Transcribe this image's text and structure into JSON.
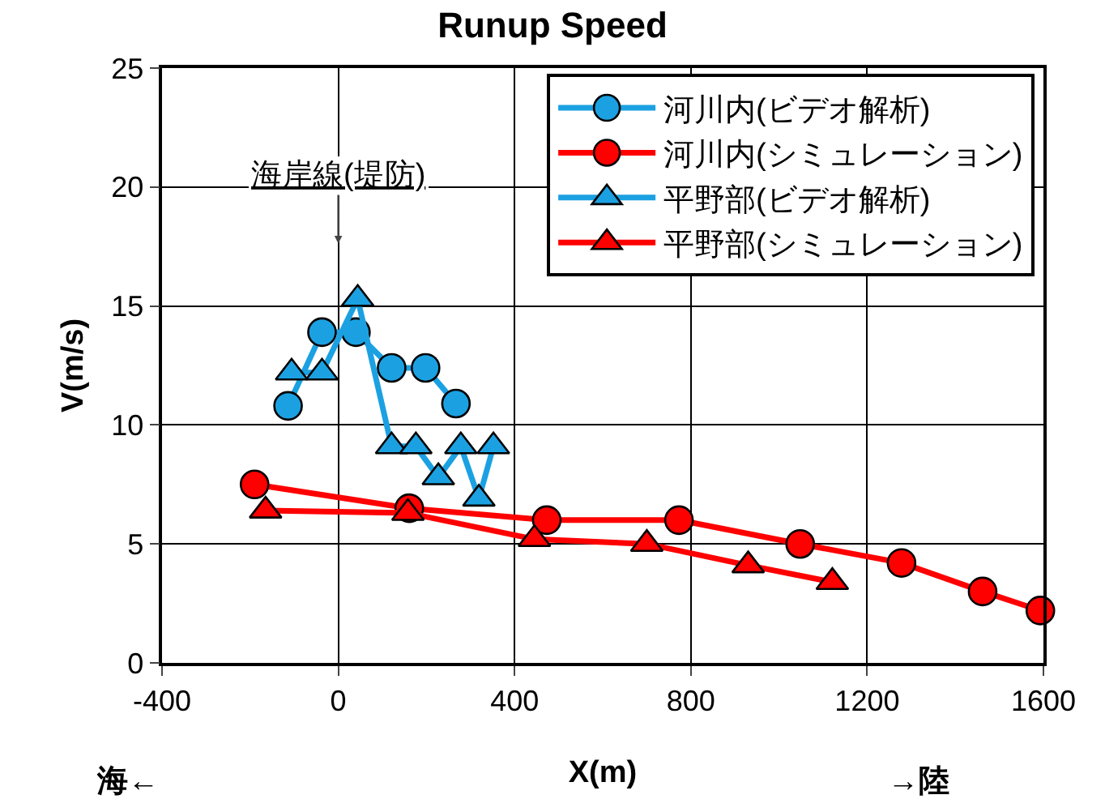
{
  "chart_data": {
    "type": "line",
    "title": "Runup Speed",
    "xlabel": "X(m)",
    "ylabel": "V(m/s)",
    "xlim": [
      -400,
      1600
    ],
    "xticks": [
      -400,
      0,
      400,
      800,
      1200,
      1600
    ],
    "ylim": [
      0,
      25
    ],
    "yticks": [
      0,
      5,
      10,
      15,
      20,
      25
    ],
    "grid": true,
    "legend": "top right",
    "line_style": "solid",
    "series": [
      {
        "name": "河川内(ビデオ解析)",
        "color": "#1ba1e2",
        "marker": "circle",
        "x": [
          -114,
          -37,
          40,
          121,
          198,
          267
        ],
        "values": [
          10.8,
          13.9,
          13.9,
          12.4,
          12.4,
          10.9
        ]
      },
      {
        "name": "河川内(シミュレーション)",
        "color": "#ff0000",
        "marker": "circle",
        "x": [
          -190,
          161,
          473,
          773,
          1048,
          1278,
          1462,
          1593
        ],
        "values": [
          7.5,
          6.5,
          6.0,
          6.0,
          5.0,
          4.2,
          3.0,
          2.2
        ]
      },
      {
        "name": "平野部(ビデオ解析)",
        "color": "#1ba1e2",
        "marker": "triangle",
        "x": [
          -106,
          -37,
          44,
          121,
          176,
          227,
          278,
          319,
          352
        ],
        "values": [
          12.2,
          12.2,
          15.3,
          9.1,
          9.1,
          7.8,
          9.1,
          6.9,
          9.1
        ]
      },
      {
        "name": "平野部(シミュレーション)",
        "color": "#ff0000",
        "marker": "triangle",
        "x": [
          -165,
          158,
          445,
          700,
          930,
          1121
        ],
        "values": [
          6.4,
          6.3,
          5.2,
          5.0,
          4.1,
          3.4
        ]
      }
    ],
    "annotations": [
      "海岸線(堤防)",
      "海←",
      "→陸"
    ]
  }
}
